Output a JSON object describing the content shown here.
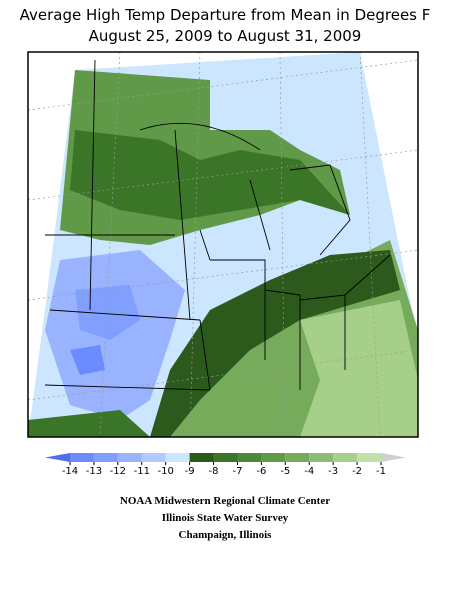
{
  "title": [
    "Average High Temp Departure from Mean in Degrees F",
    "August 25, 2009 to August 31, 2009"
  ],
  "colorbar": {
    "ticks": [
      -14,
      -13,
      -12,
      -11,
      -10,
      -9,
      -8,
      -7,
      -6,
      -5,
      -4,
      -3,
      -2,
      -1
    ],
    "colors": [
      "#4f6fe8",
      "#6a8cff",
      "#809fff",
      "#99b3ff",
      "#b3c9ff",
      "#cce6ff",
      "#2b5a1c",
      "#3a7528",
      "#4c8838",
      "#609a48",
      "#77ab5c",
      "#8dbd72",
      "#a6cf8a",
      "#c0e2a6",
      "#cfcfcf"
    ]
  },
  "credits": [
    "NOAA Midwestern Regional Climate Center",
    "Illinois State Water Survey",
    "Champaign, Illinois"
  ]
}
